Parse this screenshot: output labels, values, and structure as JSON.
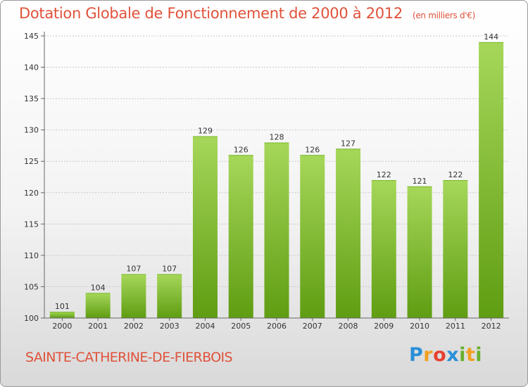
{
  "title": "Dotation Globale de Fonctionnement de 2000 à 2012",
  "unit": "(en milliers d'€)",
  "commune": "SAINTE-CATHERINE-DE-FIERBOIS",
  "logo": {
    "letters": [
      "P",
      "r",
      "o",
      "x",
      "i",
      "t",
      "i"
    ],
    "colors": [
      "#2a8fd8",
      "#f0a020",
      "#e84030",
      "#2a8fd8",
      "#68b030",
      "#f0a020",
      "#68b030"
    ]
  },
  "colors": {
    "title": "#e0523a",
    "bar_light": "#a6d75a",
    "bar_dark": "#5f9d12",
    "grid": "#c8c8c8"
  },
  "chart_data": {
    "type": "bar",
    "categories": [
      "2000",
      "2001",
      "2002",
      "2003",
      "2004",
      "2005",
      "2006",
      "2007",
      "2008",
      "2009",
      "2010",
      "2011",
      "2012"
    ],
    "values": [
      101,
      104,
      107,
      107,
      129,
      126,
      128,
      126,
      127,
      122,
      121,
      122,
      144
    ],
    "ylim": [
      100,
      145
    ],
    "yticks": [
      100,
      105,
      110,
      115,
      120,
      125,
      130,
      135,
      140,
      145
    ],
    "grid": true
  }
}
